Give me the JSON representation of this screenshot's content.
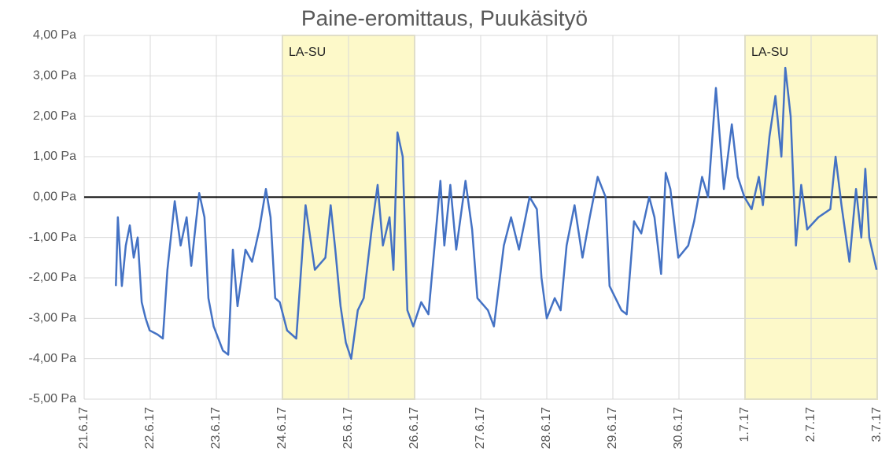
{
  "chart_data": {
    "type": "line",
    "title": "Paine-eromittaus, Puukäsityö",
    "xlim": [
      0,
      12
    ],
    "xticks": [
      {
        "value": 0,
        "label": "21.6.17"
      },
      {
        "value": 1,
        "label": "22.6.17"
      },
      {
        "value": 2,
        "label": "23.6.17"
      },
      {
        "value": 3,
        "label": "24.6.17"
      },
      {
        "value": 4,
        "label": "25.6.17"
      },
      {
        "value": 5,
        "label": "26.6.17"
      },
      {
        "value": 6,
        "label": "27.6.17"
      },
      {
        "value": 7,
        "label": "28.6.17"
      },
      {
        "value": 8,
        "label": "29.6.17"
      },
      {
        "value": 9,
        "label": "30.6.17"
      },
      {
        "value": 10,
        "label": "1.7.17"
      },
      {
        "value": 11,
        "label": "2.7.17"
      },
      {
        "value": 12,
        "label": "3.7.17"
      }
    ],
    "ylim": [
      -5,
      4
    ],
    "yticks": [
      {
        "value": 4,
        "label": "4,00 Pa"
      },
      {
        "value": 3,
        "label": "3,00 Pa"
      },
      {
        "value": 2,
        "label": "2,00 Pa"
      },
      {
        "value": 1,
        "label": "1,00 Pa"
      },
      {
        "value": 0,
        "label": "0,00 Pa"
      },
      {
        "value": -1,
        "label": "-1,00 Pa"
      },
      {
        "value": -2,
        "label": "-2,00 Pa"
      },
      {
        "value": -3,
        "label": "-3,00 Pa"
      },
      {
        "value": -4,
        "label": "-4,00 Pa"
      },
      {
        "value": -5,
        "label": "-5,00 Pa"
      }
    ],
    "grid": true,
    "shaded_regions": [
      {
        "label": "LA-SU",
        "xlim": [
          3,
          5
        ],
        "color": "#fdf9c9"
      },
      {
        "label": "LA-SU",
        "xlim": [
          10,
          12
        ],
        "color": "#fdf9c9"
      }
    ],
    "series": [
      {
        "color": "#4472c4",
        "x": [
          0.48,
          0.51,
          0.57,
          0.63,
          0.69,
          0.75,
          0.81,
          0.87,
          0.93,
          0.99,
          1.11,
          1.19,
          1.26,
          1.37,
          1.46,
          1.55,
          1.62,
          1.68,
          1.74,
          1.82,
          1.88,
          1.96,
          2.1,
          2.18,
          2.25,
          2.32,
          2.44,
          2.54,
          2.65,
          2.75,
          2.82,
          2.89,
          2.96,
          3.07,
          3.21,
          3.35,
          3.49,
          3.65,
          3.73,
          3.8,
          3.88,
          3.96,
          4.04,
          4.14,
          4.23,
          4.35,
          4.44,
          4.52,
          4.62,
          4.68,
          4.74,
          4.82,
          4.89,
          4.98,
          5.1,
          5.21,
          5.39,
          5.45,
          5.54,
          5.63,
          5.77,
          5.87,
          5.95,
          6.11,
          6.2,
          6.35,
          6.46,
          6.58,
          6.74,
          6.85,
          6.92,
          7.0,
          7.12,
          7.21,
          7.3,
          7.42,
          7.54,
          7.65,
          7.77,
          7.89,
          7.95,
          8.13,
          8.21,
          8.32,
          8.43,
          8.55,
          8.63,
          8.73,
          8.8,
          8.87,
          8.99,
          9.14,
          9.23,
          9.35,
          9.44,
          9.56,
          9.68,
          9.8,
          9.89,
          9.99,
          10.1,
          10.21,
          10.27,
          10.37,
          10.46,
          10.55,
          10.61,
          10.69,
          10.77,
          10.85,
          10.94,
          11.11,
          11.29,
          11.37,
          11.46,
          11.58,
          11.68,
          11.76,
          11.82,
          11.88,
          11.99
        ],
        "values": [
          -2.2,
          -0.5,
          -2.2,
          -1.2,
          -0.7,
          -1.5,
          -1.0,
          -2.6,
          -3.0,
          -3.3,
          -3.4,
          -3.5,
          -1.8,
          -0.1,
          -1.2,
          -0.5,
          -1.7,
          -0.8,
          0.1,
          -0.5,
          -2.5,
          -3.2,
          -3.8,
          -3.9,
          -1.3,
          -2.7,
          -1.3,
          -1.6,
          -0.8,
          0.2,
          -0.5,
          -2.5,
          -2.6,
          -3.3,
          -3.5,
          -0.2,
          -1.8,
          -1.5,
          -0.2,
          -1.3,
          -2.7,
          -3.6,
          -4.0,
          -2.8,
          -2.5,
          -0.8,
          0.3,
          -1.2,
          -0.5,
          -1.8,
          1.6,
          1.0,
          -2.8,
          -3.2,
          -2.6,
          -2.9,
          0.4,
          -1.2,
          0.3,
          -1.3,
          0.4,
          -0.8,
          -2.5,
          -2.8,
          -3.2,
          -1.2,
          -0.5,
          -1.3,
          0.0,
          -0.3,
          -2.0,
          -3.0,
          -2.5,
          -2.8,
          -1.2,
          -0.2,
          -1.5,
          -0.5,
          0.5,
          0.0,
          -2.2,
          -2.8,
          -2.9,
          -0.6,
          -0.9,
          0.0,
          -0.5,
          -1.9,
          0.6,
          0.2,
          -1.5,
          -1.2,
          -0.6,
          0.5,
          0.0,
          2.7,
          0.2,
          1.8,
          0.5,
          0.0,
          -0.3,
          0.5,
          -0.2,
          1.5,
          2.5,
          1.0,
          3.2,
          2.0,
          -1.2,
          0.3,
          -0.8,
          -0.5,
          -0.3,
          1.0,
          -0.2,
          -1.6,
          0.2,
          -1.0,
          0.7,
          -1.0,
          -1.8
        ]
      }
    ]
  }
}
